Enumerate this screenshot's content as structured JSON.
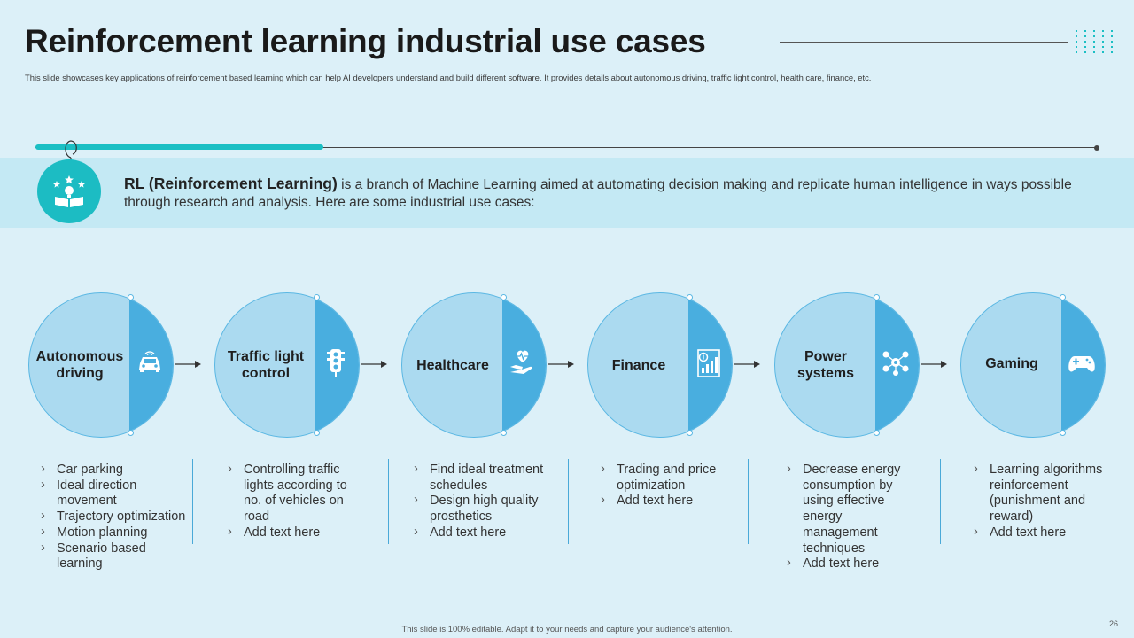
{
  "title": "Reinforcement learning industrial use cases",
  "subtitle": "This slide showcases key applications of reinforcement based learning which can help AI developers understand and build different software. It provides details about autonomous driving, traffic light control, health care, finance, etc.",
  "intro": {
    "bold": "RL (Reinforcement Learning)",
    "text": " is a branch of Machine Learning aimed at automating decision making and replicate human intelligence in ways possible through research and analysis. Here are some industrial use cases:"
  },
  "stages": [
    {
      "label": "Autonomous driving",
      "icon": "car-icon",
      "bullets": [
        "Car parking",
        "Ideal direction movement",
        "Trajectory optimization",
        "Motion planning",
        "Scenario based learning"
      ]
    },
    {
      "label": "Traffic light control",
      "icon": "traffic-light-icon",
      "bullets": [
        "Controlling traffic lights according to no. of vehicles on road",
        "Add text here"
      ]
    },
    {
      "label": "Healthcare",
      "icon": "heart-hand-icon",
      "bullets": [
        "Find ideal treatment schedules",
        "Design high quality prosthetics",
        "Add text here"
      ]
    },
    {
      "label": "Finance",
      "icon": "finance-chart-icon",
      "bullets": [
        "Trading and price optimization",
        "Add text here"
      ]
    },
    {
      "label": "Power systems",
      "icon": "power-network-icon",
      "bullets": [
        "Decrease energy consumption by using effective energy management techniques",
        "Add text here"
      ]
    },
    {
      "label": "Gaming",
      "icon": "gamepad-icon",
      "bullets": [
        "Learning algorithms reinforcement (punishment and reward)",
        "Add text here"
      ]
    }
  ],
  "footer": "This slide is 100% editable. Adapt it to your needs and capture your audience's attention.",
  "page_number": "26",
  "colors": {
    "accent": "#1bbfc4",
    "circle": "#abdaf0",
    "circle_dark": "#49aedf",
    "background": "#dcf0f8"
  }
}
